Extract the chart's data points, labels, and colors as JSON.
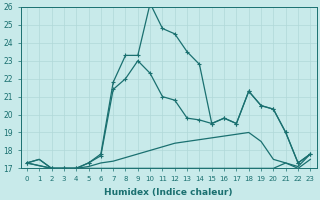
{
  "xlabel": "Humidex (Indice chaleur)",
  "bg_color": "#c8eaea",
  "grid_color": "#b0d8d8",
  "line_color": "#1a7070",
  "xlim": [
    -0.5,
    23.5
  ],
  "ylim": [
    17,
    26
  ],
  "xticks": [
    0,
    1,
    2,
    3,
    4,
    5,
    6,
    7,
    8,
    9,
    10,
    11,
    12,
    13,
    14,
    15,
    16,
    17,
    18,
    19,
    20,
    21,
    22,
    23
  ],
  "yticks": [
    17,
    18,
    19,
    20,
    21,
    22,
    23,
    24,
    25,
    26
  ],
  "s0x": [
    0,
    1,
    2,
    3,
    4,
    5,
    6,
    7,
    8,
    9,
    10,
    11,
    12,
    13,
    14,
    15,
    16,
    17,
    18,
    19,
    20,
    21,
    22,
    23
  ],
  "s0y": [
    17.3,
    17.5,
    17.0,
    17.0,
    17.0,
    17.0,
    17.0,
    17.0,
    17.0,
    17.0,
    17.0,
    17.0,
    17.0,
    17.0,
    17.0,
    17.0,
    17.0,
    17.0,
    17.0,
    17.0,
    17.0,
    17.3,
    17.0,
    17.5
  ],
  "s1x": [
    0,
    1,
    2,
    3,
    4,
    5,
    6,
    7,
    8,
    9,
    10,
    11,
    12,
    13,
    14,
    15,
    16,
    17,
    18,
    19,
    20,
    21,
    22,
    23
  ],
  "s1y": [
    17.3,
    17.5,
    17.0,
    17.0,
    17.0,
    17.1,
    17.3,
    17.4,
    17.6,
    17.8,
    18.0,
    18.2,
    18.4,
    18.5,
    18.6,
    18.7,
    18.8,
    18.9,
    19.0,
    18.5,
    17.5,
    17.3,
    17.1,
    17.8
  ],
  "s2x": [
    0,
    2,
    3,
    4,
    5,
    6,
    7,
    8,
    9,
    10,
    11,
    12,
    13,
    14,
    15,
    16,
    17,
    18,
    19,
    20,
    21,
    22,
    23
  ],
  "s2y": [
    17.3,
    17.0,
    17.0,
    17.0,
    17.3,
    17.7,
    21.4,
    22.0,
    23.0,
    22.3,
    21.0,
    20.8,
    19.8,
    19.7,
    19.5,
    19.8,
    19.5,
    21.3,
    20.5,
    20.3,
    19.0,
    17.3,
    17.8
  ],
  "s3x": [
    0,
    2,
    3,
    4,
    5,
    6,
    7,
    8,
    9,
    10,
    11,
    12,
    13,
    14,
    15,
    16,
    17,
    18,
    19,
    20,
    21,
    22,
    23
  ],
  "s3y": [
    17.3,
    17.0,
    17.0,
    17.0,
    17.3,
    17.8,
    21.8,
    23.3,
    23.3,
    26.2,
    24.8,
    24.5,
    23.5,
    22.8,
    19.5,
    19.8,
    19.5,
    21.3,
    20.5,
    20.3,
    19.0,
    17.3,
    17.8
  ]
}
